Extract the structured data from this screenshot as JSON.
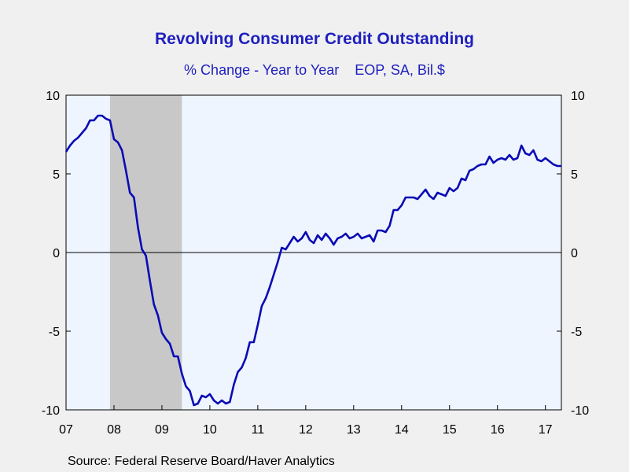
{
  "chart_data": {
    "type": "line",
    "title": "Revolving Consumer Credit Outstanding",
    "subtitle": "% Change - Year to Year    EOP, SA, Bil.$",
    "source": "Source:  Federal Reserve Board/Haver Analytics",
    "xlabel": "",
    "ylabel": "",
    "x_ticks": [
      "07",
      "08",
      "09",
      "10",
      "11",
      "12",
      "13",
      "14",
      "15",
      "16",
      "17"
    ],
    "y_ticks": [
      "10",
      "5",
      "0",
      "-5",
      "-10"
    ],
    "xlim": [
      "2007-01",
      "2017-05"
    ],
    "ylim": [
      -10,
      10
    ],
    "grid": false,
    "recession_shading": {
      "start": "2007-12",
      "end": "2009-06",
      "color": "#c8c8c8"
    },
    "colors": {
      "line": "#0b0bb5",
      "plot_background": "#eef5ff",
      "title": "#1f1fbf",
      "zero_line": "#000000"
    },
    "series": [
      {
        "x": [
          "2007-01",
          "2007-02",
          "2007-03",
          "2007-04",
          "2007-05",
          "2007-06",
          "2007-07",
          "2007-08",
          "2007-09",
          "2007-10",
          "2007-11",
          "2007-12",
          "2008-01",
          "2008-02",
          "2008-03",
          "2008-04",
          "2008-05",
          "2008-06",
          "2008-07",
          "2008-08",
          "2008-09",
          "2008-10",
          "2008-11",
          "2008-12",
          "2009-01",
          "2009-02",
          "2009-03",
          "2009-04",
          "2009-05",
          "2009-06",
          "2009-07",
          "2009-08",
          "2009-09",
          "2009-10",
          "2009-11",
          "2009-12",
          "2010-01",
          "2010-02",
          "2010-03",
          "2010-04",
          "2010-05",
          "2010-06",
          "2010-07",
          "2010-08",
          "2010-09",
          "2010-10",
          "2010-11",
          "2010-12",
          "2011-01",
          "2011-02",
          "2011-03",
          "2011-04",
          "2011-05",
          "2011-06",
          "2011-07",
          "2011-08",
          "2011-09",
          "2011-10",
          "2011-11",
          "2011-12",
          "2012-01",
          "2012-02",
          "2012-03",
          "2012-04",
          "2012-05",
          "2012-06",
          "2012-07",
          "2012-08",
          "2012-09",
          "2012-10",
          "2012-11",
          "2012-12",
          "2013-01",
          "2013-02",
          "2013-03",
          "2013-04",
          "2013-05",
          "2013-06",
          "2013-07",
          "2013-08",
          "2013-09",
          "2013-10",
          "2013-11",
          "2013-12",
          "2014-01",
          "2014-02",
          "2014-03",
          "2014-04",
          "2014-05",
          "2014-06",
          "2014-07",
          "2014-08",
          "2014-09",
          "2014-10",
          "2014-11",
          "2014-12",
          "2015-01",
          "2015-02",
          "2015-03",
          "2015-04",
          "2015-05",
          "2015-06",
          "2015-07",
          "2015-08",
          "2015-09",
          "2015-10",
          "2015-11",
          "2015-12",
          "2016-01",
          "2016-02",
          "2016-03",
          "2016-04",
          "2016-05",
          "2016-06",
          "2016-07",
          "2016-08",
          "2016-09",
          "2016-10",
          "2016-11",
          "2016-12",
          "2017-01",
          "2017-02",
          "2017-03",
          "2017-04",
          "2017-05"
        ],
        "values": [
          6.4,
          6.8,
          7.1,
          7.3,
          7.6,
          7.9,
          8.4,
          8.4,
          8.7,
          8.7,
          8.5,
          8.4,
          7.2,
          7.0,
          6.5,
          5.2,
          3.8,
          3.5,
          1.6,
          0.2,
          -0.2,
          -1.8,
          -3.3,
          -4.0,
          -5.1,
          -5.5,
          -5.8,
          -6.6,
          -6.6,
          -7.7,
          -8.5,
          -8.8,
          -9.7,
          -9.6,
          -9.1,
          -9.2,
          -9.0,
          -9.4,
          -9.6,
          -9.4,
          -9.6,
          -9.5,
          -8.4,
          -7.6,
          -7.3,
          -6.7,
          -5.7,
          -5.7,
          -4.6,
          -3.4,
          -2.9,
          -2.2,
          -1.4,
          -0.6,
          0.3,
          0.2,
          0.6,
          1.0,
          0.7,
          0.9,
          1.3,
          0.8,
          0.6,
          1.1,
          0.8,
          1.2,
          0.9,
          0.5,
          0.9,
          1.0,
          1.2,
          0.9,
          1.0,
          1.2,
          0.9,
          1.0,
          1.1,
          0.7,
          1.4,
          1.4,
          1.3,
          1.7,
          2.7,
          2.7,
          3.0,
          3.5,
          3.5,
          3.5,
          3.4,
          3.7,
          4.0,
          3.6,
          3.4,
          3.8,
          3.7,
          3.6,
          4.1,
          3.9,
          4.1,
          4.7,
          4.6,
          5.2,
          5.3,
          5.5,
          5.6,
          5.6,
          6.1,
          5.7,
          5.9,
          6.0,
          5.9,
          6.2,
          5.9,
          6.0,
          6.8,
          6.3,
          6.2,
          6.5,
          5.9,
          5.8,
          6.0,
          5.8,
          5.6,
          5.5,
          5.5
        ]
      }
    ]
  }
}
